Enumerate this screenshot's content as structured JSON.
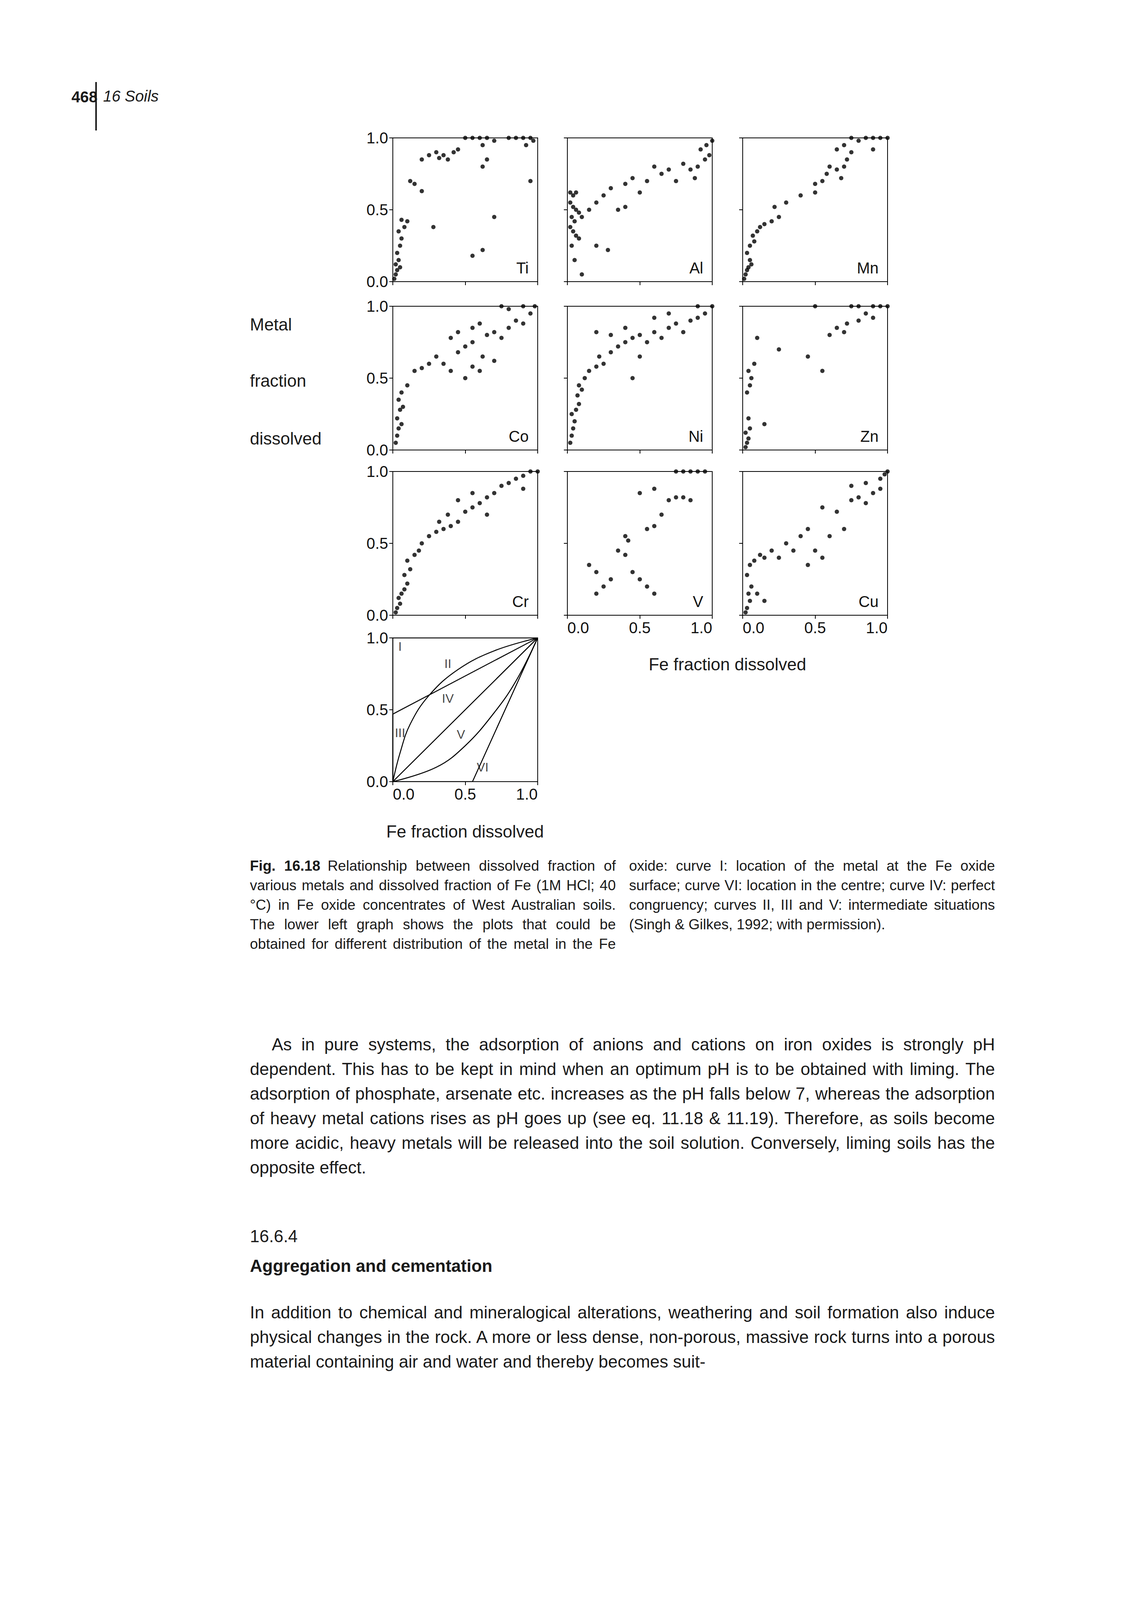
{
  "header": {
    "page_number": "468",
    "running_title": "16 Soils"
  },
  "figure": {
    "y_title": "Metal fraction dissolved",
    "x_title": "Fe fraction dissolved"
  },
  "chart_data": [
    {
      "type": "scatter",
      "title": "Ti",
      "color": "#000000",
      "marker": "circle",
      "grid": false,
      "tick_labels": "y",
      "xlim": [
        0,
        1
      ],
      "ylim": [
        0,
        1
      ],
      "xticks": [
        {
          "value": 0,
          "label": "0.0"
        },
        0.5,
        {
          "value": 1,
          "label": "1.0"
        }
      ],
      "yticks": [
        {
          "value": 0,
          "label": "0.0"
        },
        0.5,
        {
          "value": 1,
          "label": "1.0"
        }
      ],
      "x": [
        0.01,
        0.02,
        0.03,
        0.02,
        0.04,
        0.05,
        0.03,
        0.05,
        0.06,
        0.04,
        0.08,
        0.1,
        0.06,
        0.28,
        0.12,
        0.15,
        0.2,
        0.2,
        0.25,
        0.3,
        0.32,
        0.35,
        0.38,
        0.42,
        0.45,
        0.5,
        0.55,
        0.6,
        0.62,
        0.65,
        0.7,
        0.62,
        0.65,
        0.8,
        0.85,
        0.9,
        0.95,
        0.97,
        0.92,
        0.95,
        0.7,
        0.62,
        0.55
      ],
      "values": [
        0.02,
        0.05,
        0.08,
        0.12,
        0.15,
        0.1,
        0.2,
        0.25,
        0.3,
        0.35,
        0.38,
        0.42,
        0.43,
        0.38,
        0.7,
        0.68,
        0.63,
        0.85,
        0.88,
        0.9,
        0.86,
        0.88,
        0.85,
        0.9,
        0.92,
        1.0,
        1.0,
        1.0,
        0.95,
        1.0,
        0.98,
        0.8,
        0.85,
        1.0,
        1.0,
        1.0,
        1.0,
        0.98,
        0.95,
        0.7,
        0.45,
        0.22,
        0.18
      ]
    },
    {
      "type": "scatter",
      "title": "Al",
      "color": "#000000",
      "marker": "circle",
      "grid": false,
      "tick_labels": false,
      "xlim": [
        0,
        1
      ],
      "ylim": [
        0,
        1
      ],
      "xticks": [
        {
          "value": 0,
          "label": "0.0"
        },
        0.5,
        {
          "value": 1,
          "label": "1.0"
        }
      ],
      "yticks": [
        {
          "value": 0,
          "label": "0.0"
        },
        0.5,
        {
          "value": 1,
          "label": "1.0"
        }
      ],
      "x": [
        0.02,
        0.04,
        0.06,
        0.02,
        0.04,
        0.06,
        0.08,
        0.03,
        0.05,
        0.1,
        0.02,
        0.04,
        0.06,
        0.08,
        0.03,
        0.05,
        0.1,
        0.15,
        0.2,
        0.25,
        0.3,
        0.35,
        0.4,
        0.2,
        0.28,
        0.4,
        0.45,
        0.5,
        0.55,
        0.6,
        0.65,
        0.7,
        0.75,
        0.8,
        0.85,
        0.9,
        0.95,
        0.92,
        0.96,
        1.0,
        0.98,
        0.88
      ],
      "values": [
        0.62,
        0.6,
        0.62,
        0.55,
        0.52,
        0.5,
        0.48,
        0.45,
        0.42,
        0.45,
        0.38,
        0.35,
        0.32,
        0.3,
        0.25,
        0.15,
        0.05,
        0.5,
        0.55,
        0.6,
        0.65,
        0.5,
        0.52,
        0.25,
        0.22,
        0.68,
        0.72,
        0.62,
        0.7,
        0.8,
        0.75,
        0.78,
        0.7,
        0.82,
        0.78,
        0.8,
        0.85,
        0.92,
        0.95,
        0.98,
        0.88,
        0.72
      ]
    },
    {
      "type": "scatter",
      "title": "Mn",
      "color": "#000000",
      "marker": "circle",
      "grid": false,
      "tick_labels": false,
      "xlim": [
        0,
        1
      ],
      "ylim": [
        0,
        1
      ],
      "xticks": [
        {
          "value": 0,
          "label": "0.0"
        },
        0.5,
        {
          "value": 1,
          "label": "1.0"
        }
      ],
      "yticks": [
        {
          "value": 0,
          "label": "0.0"
        },
        0.5,
        {
          "value": 1,
          "label": "1.0"
        }
      ],
      "x": [
        0.01,
        0.02,
        0.03,
        0.04,
        0.05,
        0.06,
        0.03,
        0.05,
        0.08,
        0.07,
        0.1,
        0.12,
        0.15,
        0.2,
        0.25,
        0.22,
        0.3,
        0.4,
        0.5,
        0.5,
        0.55,
        0.58,
        0.6,
        0.65,
        0.68,
        0.7,
        0.72,
        0.75,
        0.65,
        0.7,
        0.75,
        0.8,
        0.85,
        0.9,
        0.95,
        1.0,
        0.9
      ],
      "values": [
        0.02,
        0.05,
        0.08,
        0.1,
        0.15,
        0.12,
        0.2,
        0.25,
        0.28,
        0.32,
        0.35,
        0.38,
        0.4,
        0.42,
        0.45,
        0.52,
        0.55,
        0.6,
        0.62,
        0.68,
        0.7,
        0.75,
        0.8,
        0.78,
        0.72,
        0.8,
        0.85,
        0.9,
        0.92,
        0.95,
        1.0,
        0.98,
        1.0,
        1.0,
        1.0,
        1.0,
        0.92
      ]
    },
    {
      "type": "scatter",
      "title": "Co",
      "color": "#000000",
      "marker": "circle",
      "grid": false,
      "tick_labels": "y",
      "xlim": [
        0,
        1
      ],
      "ylim": [
        0,
        1
      ],
      "xticks": [
        {
          "value": 0,
          "label": "0.0"
        },
        0.5,
        {
          "value": 1,
          "label": "1.0"
        }
      ],
      "yticks": [
        {
          "value": 0,
          "label": "0.0"
        },
        0.5,
        {
          "value": 1,
          "label": "1.0"
        }
      ],
      "x": [
        0.02,
        0.03,
        0.04,
        0.06,
        0.03,
        0.05,
        0.07,
        0.04,
        0.06,
        0.1,
        0.15,
        0.2,
        0.25,
        0.3,
        0.35,
        0.4,
        0.5,
        0.55,
        0.6,
        0.62,
        0.7,
        0.45,
        0.5,
        0.55,
        0.4,
        0.45,
        0.55,
        0.6,
        0.65,
        0.7,
        0.75,
        0.8,
        0.85,
        0.9,
        0.95,
        0.98,
        0.9,
        0.75,
        0.8
      ],
      "values": [
        0.05,
        0.1,
        0.15,
        0.18,
        0.22,
        0.28,
        0.3,
        0.35,
        0.4,
        0.45,
        0.55,
        0.57,
        0.6,
        0.65,
        0.6,
        0.55,
        0.5,
        0.58,
        0.55,
        0.65,
        0.62,
        0.68,
        0.72,
        0.75,
        0.78,
        0.82,
        0.85,
        0.88,
        0.8,
        0.82,
        0.78,
        0.85,
        0.9,
        0.88,
        0.95,
        1.0,
        1.0,
        1.0,
        0.98
      ]
    },
    {
      "type": "scatter",
      "title": "Ni",
      "color": "#000000",
      "marker": "circle",
      "grid": false,
      "tick_labels": false,
      "xlim": [
        0,
        1
      ],
      "ylim": [
        0,
        1
      ],
      "xticks": [
        {
          "value": 0,
          "label": "0.0"
        },
        0.5,
        {
          "value": 1,
          "label": "1.0"
        }
      ],
      "yticks": [
        {
          "value": 0,
          "label": "0.0"
        },
        0.5,
        {
          "value": 1,
          "label": "1.0"
        }
      ],
      "x": [
        0.02,
        0.03,
        0.04,
        0.05,
        0.03,
        0.06,
        0.08,
        0.07,
        0.1,
        0.08,
        0.12,
        0.15,
        0.2,
        0.25,
        0.22,
        0.3,
        0.35,
        0.4,
        0.45,
        0.5,
        0.55,
        0.6,
        0.65,
        0.7,
        0.75,
        0.8,
        0.85,
        0.9,
        0.95,
        1.0,
        0.9,
        0.5,
        0.3,
        0.4,
        0.6,
        0.7,
        0.45,
        0.2
      ],
      "values": [
        0.05,
        0.1,
        0.15,
        0.2,
        0.25,
        0.28,
        0.32,
        0.38,
        0.42,
        0.45,
        0.5,
        0.55,
        0.58,
        0.6,
        0.65,
        0.68,
        0.72,
        0.75,
        0.78,
        0.8,
        0.75,
        0.82,
        0.78,
        0.85,
        0.88,
        0.82,
        0.9,
        0.92,
        0.95,
        1.0,
        1.0,
        0.65,
        0.8,
        0.85,
        0.92,
        0.95,
        0.5,
        0.82
      ]
    },
    {
      "type": "scatter",
      "title": "Zn",
      "color": "#000000",
      "marker": "circle",
      "grid": false,
      "tick_labels": false,
      "xlim": [
        0,
        1
      ],
      "ylim": [
        0,
        1
      ],
      "xticks": [
        {
          "value": 0,
          "label": "0.0"
        },
        0.5,
        {
          "value": 1,
          "label": "1.0"
        }
      ],
      "yticks": [
        {
          "value": 0,
          "label": "0.0"
        },
        0.5,
        {
          "value": 1,
          "label": "1.0"
        }
      ],
      "x": [
        0.02,
        0.03,
        0.04,
        0.02,
        0.05,
        0.04,
        0.15,
        0.03,
        0.05,
        0.06,
        0.04,
        0.08,
        0.1,
        0.25,
        0.45,
        0.55,
        0.6,
        0.65,
        0.7,
        0.72,
        0.8,
        0.85,
        0.9,
        0.5,
        0.75,
        0.8,
        0.9,
        0.95,
        1.0
      ],
      "values": [
        0.02,
        0.05,
        0.08,
        0.12,
        0.15,
        0.22,
        0.18,
        0.4,
        0.45,
        0.5,
        0.55,
        0.6,
        0.78,
        0.7,
        0.65,
        0.55,
        0.8,
        0.85,
        0.82,
        0.88,
        0.9,
        0.95,
        0.92,
        1.0,
        1.0,
        1.0,
        1.0,
        1.0,
        1.0
      ]
    },
    {
      "type": "scatter",
      "title": "Cr",
      "color": "#000000",
      "marker": "circle",
      "grid": false,
      "tick_labels": "y",
      "xlim": [
        0,
        1
      ],
      "ylim": [
        0,
        1
      ],
      "xticks": [
        {
          "value": 0,
          "label": "0.0"
        },
        0.5,
        {
          "value": 1,
          "label": "1.0"
        }
      ],
      "yticks": [
        {
          "value": 0,
          "label": "0.0"
        },
        0.5,
        {
          "value": 1,
          "label": "1.0"
        }
      ],
      "x": [
        0.02,
        0.03,
        0.05,
        0.04,
        0.06,
        0.08,
        0.1,
        0.08,
        0.12,
        0.1,
        0.15,
        0.18,
        0.2,
        0.25,
        0.3,
        0.35,
        0.4,
        0.32,
        0.38,
        0.45,
        0.5,
        0.55,
        0.6,
        0.45,
        0.55,
        0.65,
        0.7,
        0.75,
        0.8,
        0.85,
        0.9,
        0.95,
        1.0,
        0.9,
        0.65
      ],
      "values": [
        0.02,
        0.05,
        0.08,
        0.12,
        0.15,
        0.18,
        0.22,
        0.28,
        0.32,
        0.38,
        0.42,
        0.45,
        0.5,
        0.55,
        0.58,
        0.6,
        0.62,
        0.65,
        0.7,
        0.65,
        0.72,
        0.75,
        0.78,
        0.8,
        0.85,
        0.82,
        0.85,
        0.9,
        0.92,
        0.95,
        0.97,
        1.0,
        1.0,
        0.88,
        0.7
      ]
    },
    {
      "type": "scatter",
      "title": "V",
      "color": "#000000",
      "marker": "circle",
      "grid": false,
      "tick_labels": "x",
      "xlim": [
        0,
        1
      ],
      "ylim": [
        0,
        1
      ],
      "xticks": [
        {
          "value": 0,
          "label": "0.0"
        },
        0.5,
        {
          "value": 1,
          "label": "1.0"
        }
      ],
      "yticks": [
        {
          "value": 0,
          "label": "0.0"
        },
        0.5,
        {
          "value": 1,
          "label": "1.0"
        }
      ],
      "x": [
        0.15,
        0.2,
        0.25,
        0.3,
        0.2,
        0.35,
        0.4,
        0.45,
        0.5,
        0.55,
        0.6,
        0.4,
        0.42,
        0.55,
        0.6,
        0.65,
        0.7,
        0.75,
        0.8,
        0.85,
        0.5,
        0.6,
        0.75,
        0.8,
        0.85,
        0.9,
        0.95
      ],
      "values": [
        0.35,
        0.3,
        0.2,
        0.25,
        0.15,
        0.45,
        0.42,
        0.3,
        0.25,
        0.2,
        0.15,
        0.55,
        0.52,
        0.6,
        0.62,
        0.7,
        0.8,
        0.82,
        0.82,
        0.8,
        0.85,
        0.88,
        1.0,
        1.0,
        1.0,
        1.0,
        1.0
      ]
    },
    {
      "type": "scatter",
      "title": "Cu",
      "color": "#000000",
      "marker": "circle",
      "grid": false,
      "tick_labels": "x",
      "xlim": [
        0,
        1
      ],
      "ylim": [
        0,
        1
      ],
      "xticks": [
        {
          "value": 0,
          "label": "0.0"
        },
        0.5,
        {
          "value": 1,
          "label": "1.0"
        }
      ],
      "yticks": [
        {
          "value": 0,
          "label": "0.0"
        },
        0.5,
        {
          "value": 1,
          "label": "1.0"
        }
      ],
      "x": [
        0.02,
        0.03,
        0.05,
        0.04,
        0.06,
        0.1,
        0.15,
        0.03,
        0.05,
        0.08,
        0.12,
        0.15,
        0.2,
        0.25,
        0.3,
        0.35,
        0.4,
        0.45,
        0.5,
        0.55,
        0.6,
        0.45,
        0.7,
        0.65,
        0.55,
        0.75,
        0.8,
        0.85,
        0.9,
        0.95,
        0.75,
        0.85,
        0.95,
        1.0,
        0.98
      ],
      "values": [
        0.02,
        0.05,
        0.1,
        0.15,
        0.2,
        0.15,
        0.1,
        0.28,
        0.35,
        0.38,
        0.42,
        0.4,
        0.45,
        0.4,
        0.5,
        0.45,
        0.55,
        0.35,
        0.45,
        0.4,
        0.55,
        0.6,
        0.6,
        0.72,
        0.75,
        0.8,
        0.82,
        0.78,
        0.85,
        0.88,
        0.9,
        0.92,
        0.95,
        1.0,
        0.98
      ]
    },
    {
      "type": "line",
      "x_label": "Fe fraction dissolved",
      "color": "#000000",
      "line_style": "solid",
      "grid": false,
      "tick_labels": true,
      "xlim": [
        0,
        1
      ],
      "ylim": [
        0,
        1
      ],
      "xticks": [
        {
          "value": 0,
          "label": "0.0"
        },
        0.5,
        {
          "value": 1,
          "label": "1.0"
        }
      ],
      "yticks": [
        {
          "value": 0,
          "label": "0.0"
        },
        0.5,
        {
          "value": 1,
          "label": "1.0"
        }
      ],
      "series": [
        {
          "name": "I",
          "x": [
            0,
            0,
            1
          ],
          "values": [
            0,
            1,
            1
          ],
          "label_at": [
            0.05,
            0.94
          ]
        },
        {
          "name": "II",
          "x": [
            0,
            0,
            1
          ],
          "values": [
            0,
            0.47,
            1
          ],
          "label_at": [
            0.38,
            0.82
          ]
        },
        {
          "name": "III",
          "x": [
            0,
            0.05,
            0.12,
            0.25,
            0.45,
            0.7,
            1
          ],
          "values": [
            0,
            0.2,
            0.4,
            0.6,
            0.78,
            0.91,
            1
          ],
          "label_at": [
            0.05,
            0.34
          ]
        },
        {
          "name": "IV",
          "x": [
            0,
            1
          ],
          "values": [
            0,
            1
          ],
          "label_at": [
            0.38,
            0.58
          ]
        },
        {
          "name": "V",
          "x": [
            0,
            0.3,
            0.5,
            0.7,
            0.85,
            1
          ],
          "values": [
            0,
            0.1,
            0.25,
            0.48,
            0.7,
            1
          ],
          "label_at": [
            0.47,
            0.33
          ]
        },
        {
          "name": "VI",
          "x": [
            0,
            0.55,
            1
          ],
          "values": [
            0,
            0,
            1
          ],
          "label_at": [
            0.62,
            0.1
          ]
        }
      ]
    }
  ],
  "caption": {
    "label": "Fig. 16.18",
    "text": "Relationship between dissolved fraction of various metals and dissolved fraction of Fe (1M HCl; 40 °C) in Fe oxide concentrates of West Australian soils. The lower left graph shows the plots that could be obtained for different distribution of the metal in the Fe oxide: curve I: location of the metal at the Fe oxide surface; curve VI: location in the centre; curve IV: perfect congruency; curves II, III and V: intermediate situations (Singh & Gilkes, 1992; with permission)."
  },
  "body": {
    "paragraph_1": "As in pure systems, the adsorption of anions and cations on iron oxides is strongly pH dependent. This has to be kept in mind when an optimum pH is to be obtained with liming. The adsorption of phosphate, arsenate etc. increases as the pH falls below 7, whereas the adsorption of heavy metal cations rises as pH goes up (see eq. 11.18 & 11.19). Therefore, as soils become more acidic, heavy metals will be released into the soil solution. Conversely, liming soils has the opposite effect.",
    "section_number": "16.6.4",
    "section_title": "Aggregation and cementation",
    "paragraph_2": "In addition to chemical and mineralogical alterations, weathering and soil formation also induce physical changes in the rock. A more or less dense, non-porous, massive rock turns into a porous material containing air and water and thereby becomes suit-"
  }
}
